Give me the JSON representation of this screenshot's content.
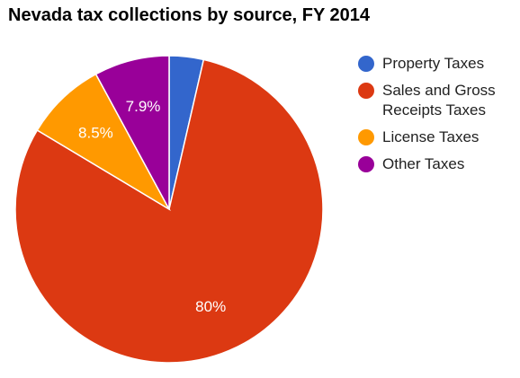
{
  "chart_data": {
    "type": "pie",
    "title": "Nevada tax collections by source, FY 2014",
    "categories": [
      "Property Taxes",
      "Sales and Gross Receipts Taxes",
      "License Taxes",
      "Other Taxes"
    ],
    "values": [
      3.6,
      80.0,
      8.5,
      7.9
    ],
    "data_labels": [
      "",
      "80%",
      "8.5%",
      "7.9%"
    ],
    "colors": [
      "#3366cc",
      "#dc3912",
      "#ff9900",
      "#990099"
    ],
    "legend_position": "right"
  }
}
